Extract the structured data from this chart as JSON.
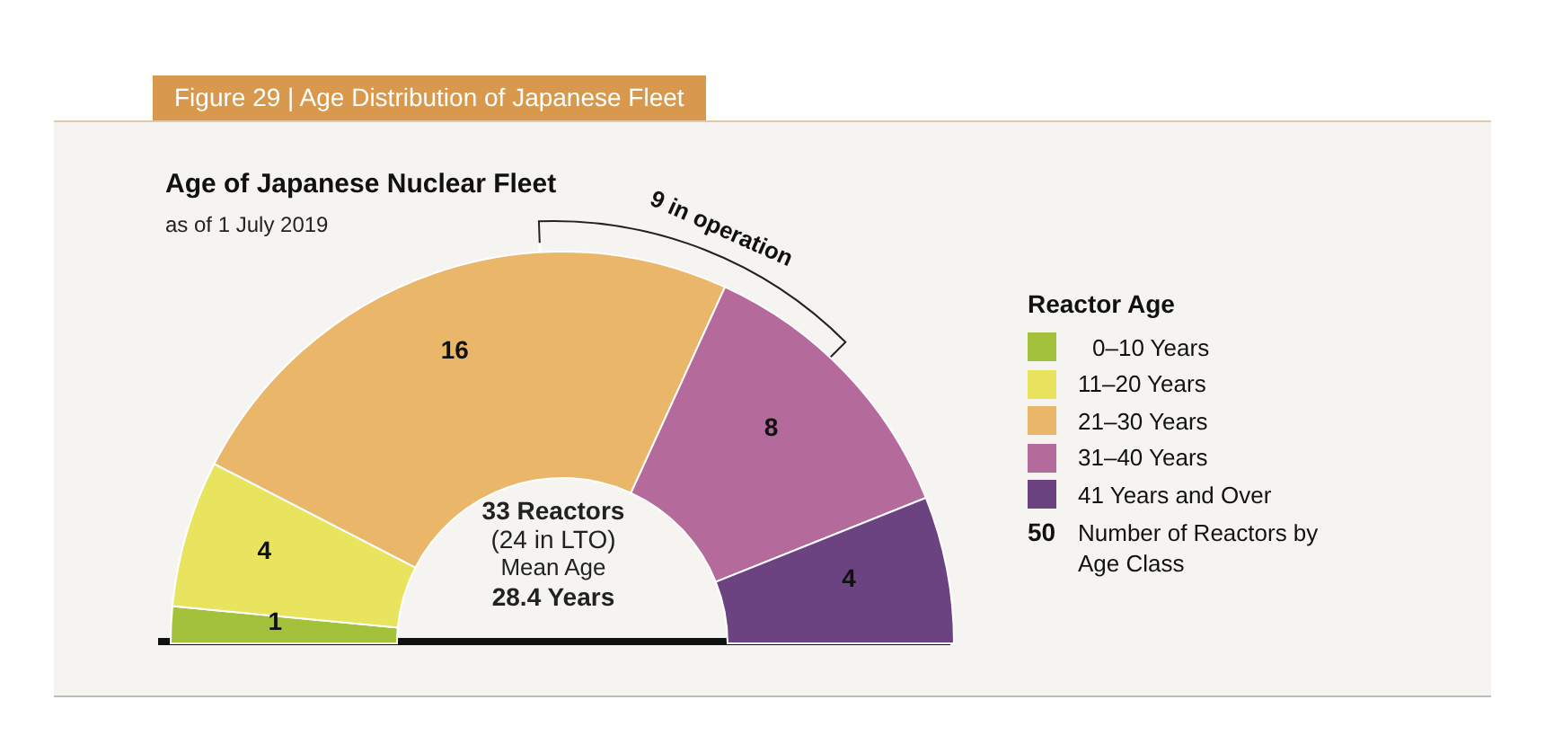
{
  "chart_data": {
    "type": "donut",
    "title": "Age of Japanese Nuclear Fleet",
    "subtitle": "as of 1 July 2019",
    "legend_title": "Reactor Age",
    "categories": [
      "0–10 Years",
      "11–20 Years",
      "21–30 Years",
      "31–40 Years",
      "41 Years and Over"
    ],
    "values": [
      1,
      4,
      16,
      8,
      4
    ],
    "colors": [
      "#a3c13a",
      "#e8e45e",
      "#eab66a",
      "#b56a9c",
      "#6b4381"
    ],
    "data_labels": true,
    "legend": "right",
    "annotations": [
      "Figure 29 | Age Distribution of Japanese Fleet",
      "9 in operation",
      "33 Reactors",
      "(24 in LTO)",
      "Mean Age",
      "28.4 Years",
      "50",
      "Number of Reactors by Age Class"
    ]
  }
}
